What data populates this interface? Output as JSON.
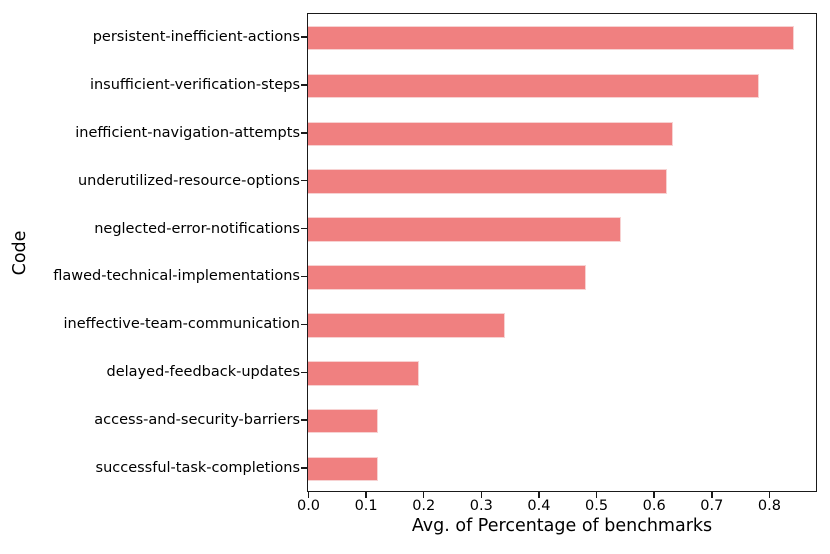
{
  "chart_data": {
    "type": "bar",
    "orientation": "horizontal",
    "title": "",
    "xlabel": "Avg. of Percentage of benchmarks",
    "ylabel": "Code",
    "categories": [
      "persistent-inefficient-actions",
      "insufficient-verification-steps",
      "inefficient-navigation-attempts",
      "underutilized-resource-options",
      "neglected-error-notifications",
      "flawed-technical-implementations",
      "ineffective-team-communication",
      "delayed-feedback-updates",
      "access-and-security-barriers",
      "successful-task-completions"
    ],
    "values": [
      0.84,
      0.78,
      0.63,
      0.62,
      0.54,
      0.48,
      0.34,
      0.19,
      0.12,
      0.12
    ],
    "xlim": [
      0.0,
      0.88
    ],
    "xticks": [
      0.0,
      0.1,
      0.2,
      0.3,
      0.4,
      0.5,
      0.6,
      0.7,
      0.8
    ],
    "xtick_labels": [
      "0.0",
      "0.1",
      "0.2",
      "0.3",
      "0.4",
      "0.5",
      "0.6",
      "0.7",
      "0.8"
    ],
    "bar_color": "#f08080",
    "bar_edge_color": "#f7d2d2",
    "spine_color": "#1a1a1a",
    "text_color": "#000000",
    "background_color": "#ffffff",
    "grid": false,
    "legend": null
  }
}
